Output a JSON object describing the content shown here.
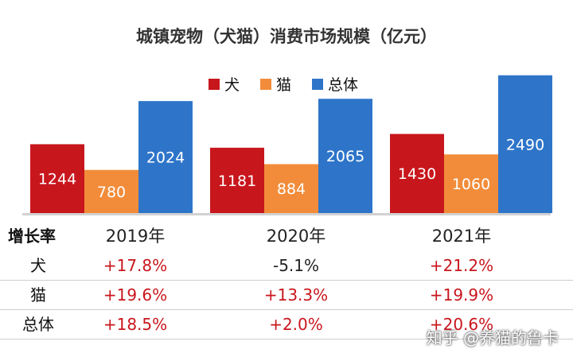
{
  "chart_data": {
    "type": "bar",
    "title": "城镇宠物（犬猫）消费市场规模（亿元）",
    "categories": [
      "2019年",
      "2020年",
      "2021年"
    ],
    "series": [
      {
        "name": "犬",
        "values": [
          1244,
          1181,
          1430
        ],
        "color": "#c8161d"
      },
      {
        "name": "猫",
        "values": [
          780,
          884,
          1060
        ],
        "color": "#f28c3a"
      },
      {
        "name": "总体",
        "values": [
          2024,
          2065,
          2490
        ],
        "color": "#2e75c9"
      }
    ],
    "ylim": [
      0,
      2500
    ],
    "grid": false,
    "legend": "top-center"
  },
  "growth_table": {
    "header_label": "增长率",
    "rows": [
      {
        "label": "犬",
        "values": [
          "+17.8%",
          "-5.1%",
          "+21.2%"
        ]
      },
      {
        "label": "猫",
        "values": [
          "+19.6%",
          "+13.3%",
          "+19.9%"
        ]
      },
      {
        "label": "总体",
        "values": [
          "+18.5%",
          "+2.0%",
          "+20.6%"
        ]
      }
    ],
    "positive_color": "#c8161d",
    "negative_color": "#222222"
  },
  "watermark_footer": "知乎 @养猫的鲁卡"
}
